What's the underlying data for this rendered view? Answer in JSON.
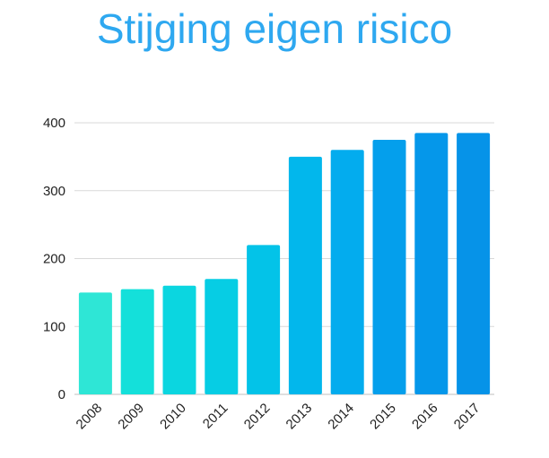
{
  "chart_data": {
    "type": "bar",
    "title": "Stijging eigen risico",
    "categories": [
      "2008",
      "2009",
      "2010",
      "2011",
      "2012",
      "2013",
      "2014",
      "2015",
      "2016",
      "2017"
    ],
    "values": [
      150,
      155,
      160,
      170,
      220,
      350,
      360,
      375,
      385,
      385
    ],
    "xlabel": "",
    "ylabel": "",
    "ylim": [
      0,
      400
    ],
    "yticks": [
      0,
      100,
      200,
      300,
      400
    ],
    "grid": true,
    "legend": "none",
    "colors": {
      "title": "#2ea8f0",
      "bars": [
        "#2ee6d6",
        "#14e0da",
        "#0bd6e0",
        "#06cde4",
        "#03c3e8",
        "#02b7ec",
        "#03acee",
        "#049fec",
        "#0597ea",
        "#0693e8"
      ]
    }
  }
}
